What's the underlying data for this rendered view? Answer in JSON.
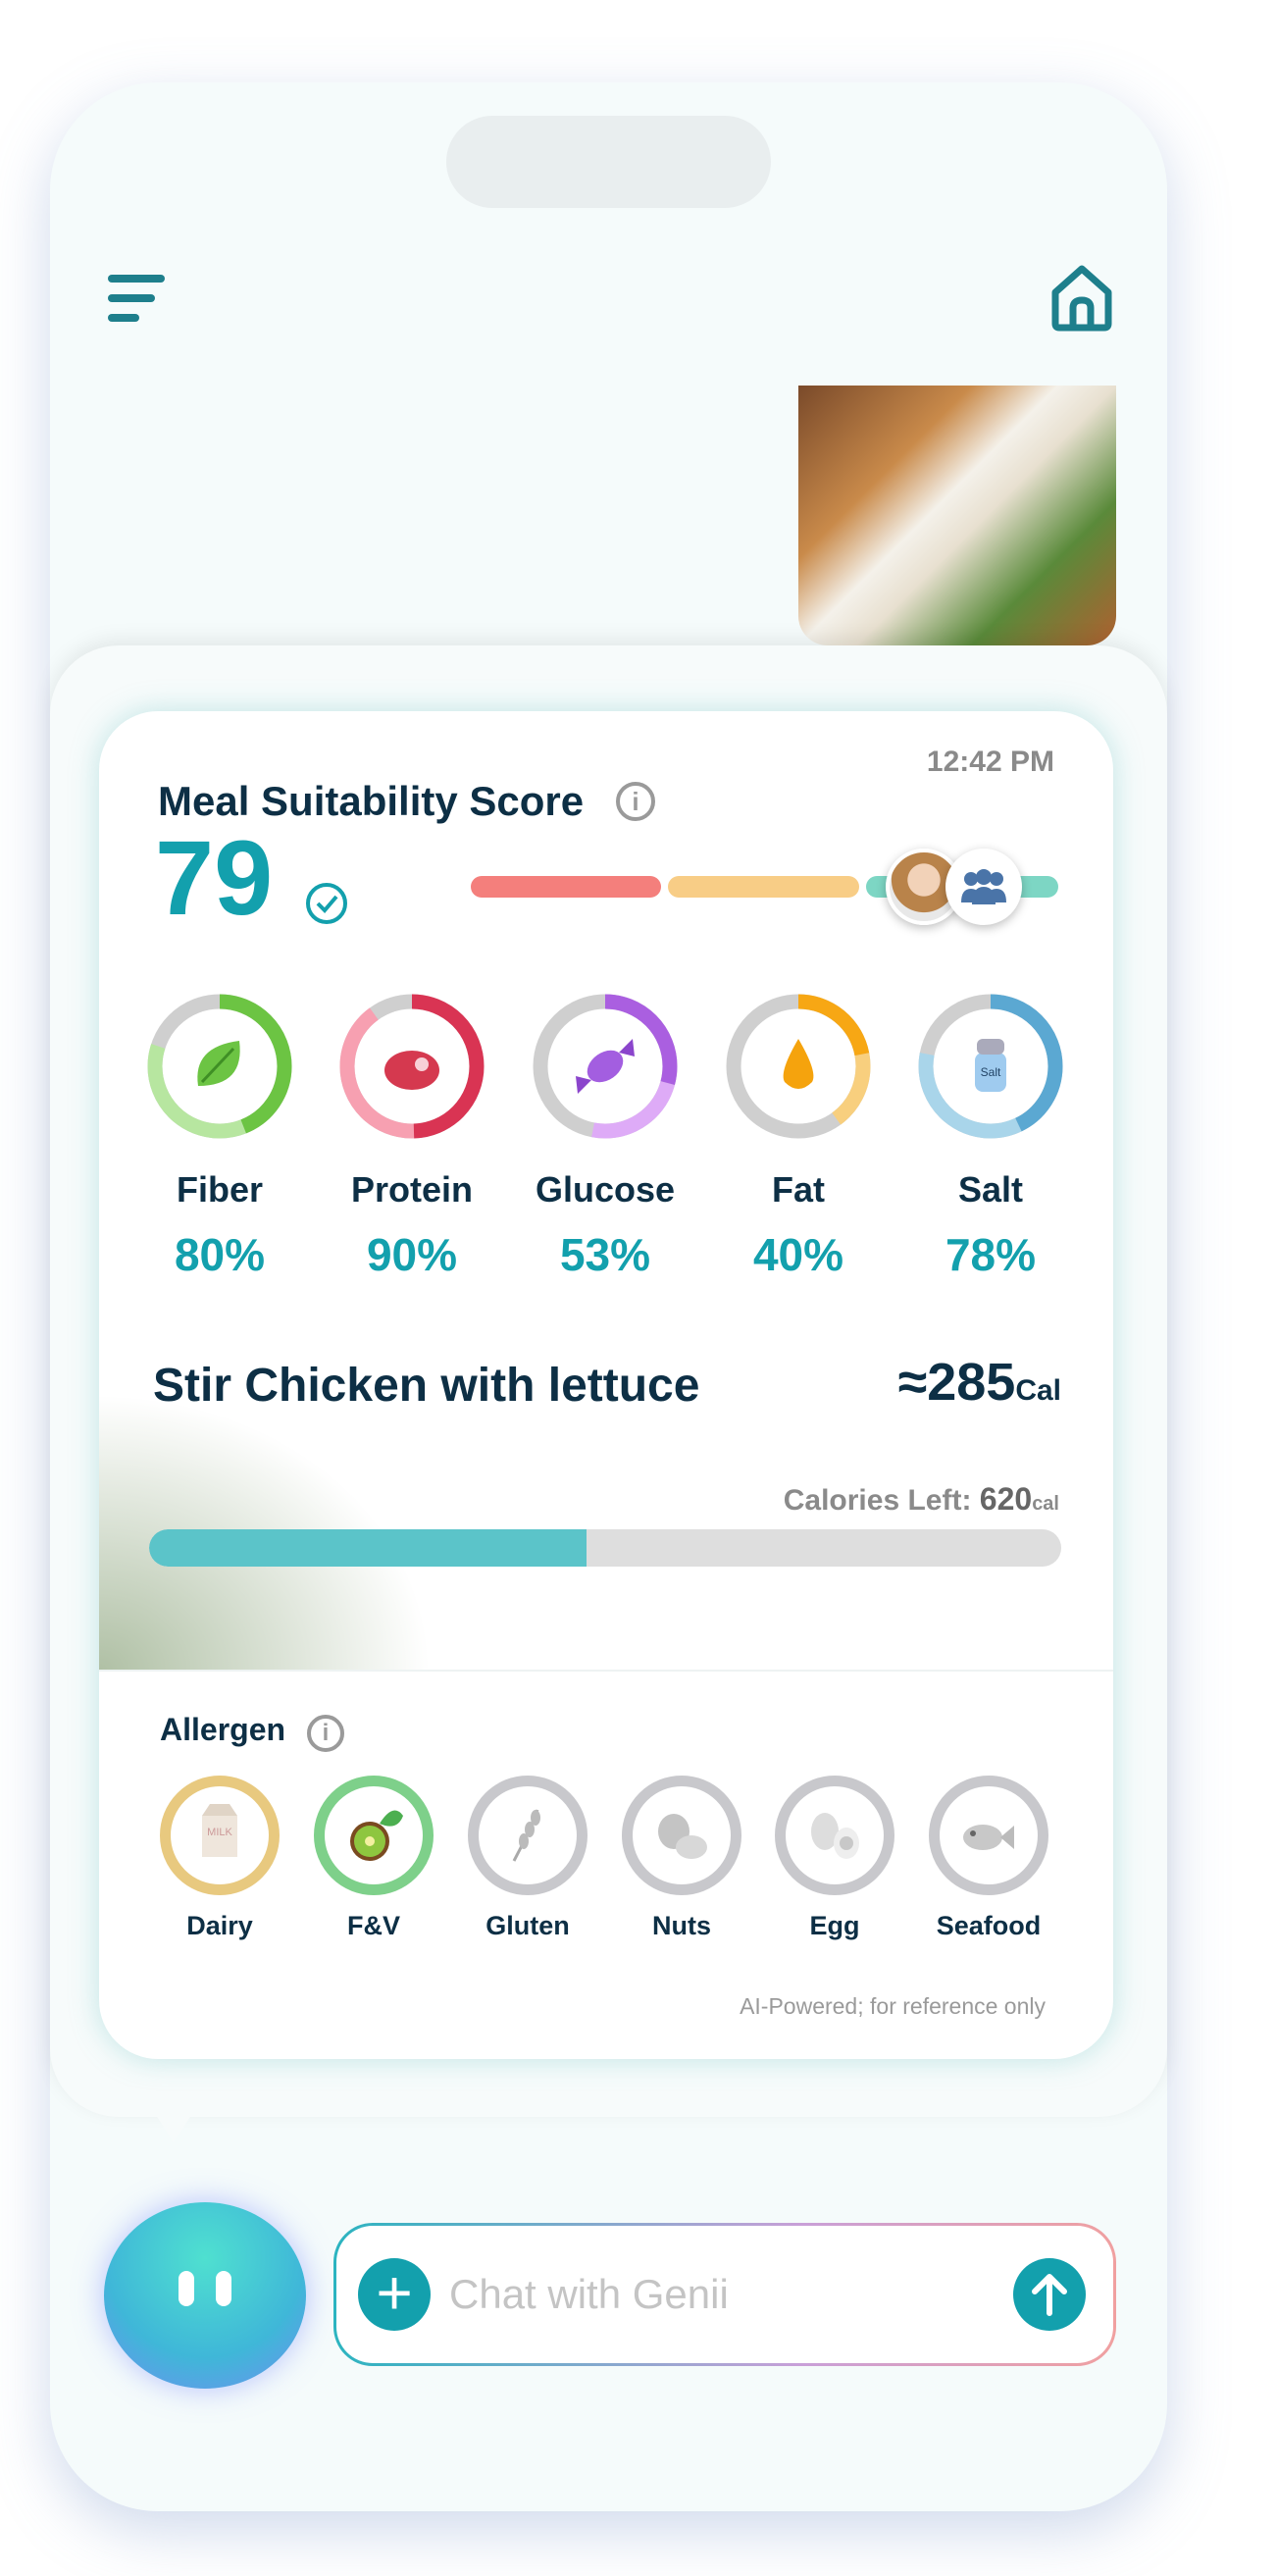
{
  "header": {
    "menu_icon": "menu-icon",
    "home_icon": "home-icon"
  },
  "score": {
    "title": "Meal Suitability Score",
    "value": "79",
    "time": "12:42 PM",
    "colors": [
      "#f47f7c",
      "#f8cd86",
      "#7dd6c4"
    ]
  },
  "nutrients": [
    {
      "label": "Fiber",
      "percent": "80%",
      "value": 80,
      "icon": "leaf-icon",
      "dark": "#6cc443",
      "light": "#b7e6a0"
    },
    {
      "label": "Protein",
      "percent": "90%",
      "value": 90,
      "icon": "steak-icon",
      "dark": "#d93453",
      "light": "#f7a0b1"
    },
    {
      "label": "Glucose",
      "percent": "53%",
      "value": 53,
      "icon": "candy-icon",
      "dark": "#aa5fe0",
      "light": "#deabf7"
    },
    {
      "label": "Fat",
      "percent": "40%",
      "value": 40,
      "icon": "oil-drop-icon",
      "dark": "#f7a714",
      "light": "#f8cf7e"
    },
    {
      "label": "Salt",
      "percent": "78%",
      "value": 78,
      "icon": "salt-shaker-icon",
      "dark": "#5ba8d2",
      "light": "#a9d5ea"
    }
  ],
  "meal": {
    "name": "Stir Chicken with lettuce",
    "calories": "≈285",
    "cal_unit": "Cal",
    "calories_left_label": "Calories Left:",
    "calories_left": "620",
    "calories_left_unit": "cal",
    "progress": 48
  },
  "allergen": {
    "title": "Allergen",
    "items": [
      {
        "label": "Dairy",
        "icon": "milk-carton-icon",
        "ring": "#e8c97f"
      },
      {
        "label": "F&V",
        "icon": "kiwi-icon",
        "ring": "#7ed08a"
      },
      {
        "label": "Gluten",
        "icon": "wheat-icon",
        "ring": "#c8c8cc"
      },
      {
        "label": "Nuts",
        "icon": "nuts-icon",
        "ring": "#c8c8cc"
      },
      {
        "label": "Egg",
        "icon": "egg-icon",
        "ring": "#c8c8cc"
      },
      {
        "label": "Seafood",
        "icon": "fish-icon",
        "ring": "#c8c8cc"
      }
    ]
  },
  "disclaimer": "AI-Powered; for reference only",
  "chat": {
    "placeholder": "Chat with Genii"
  }
}
